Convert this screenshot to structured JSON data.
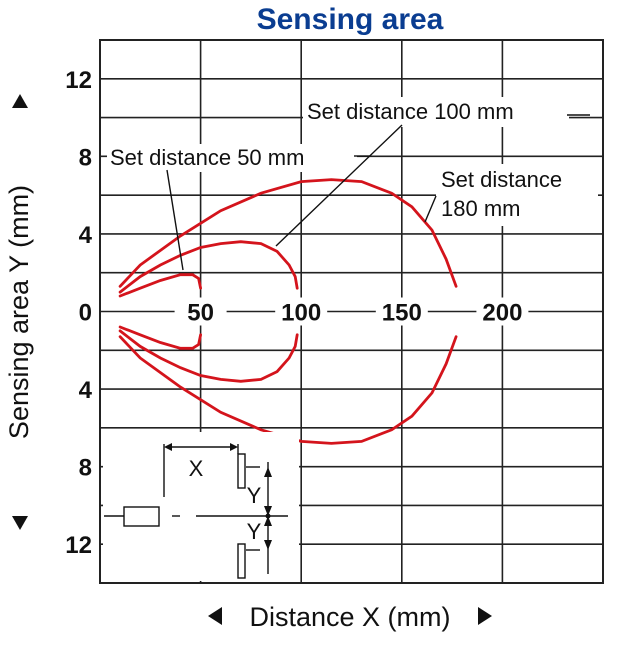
{
  "chart_data": {
    "type": "line",
    "title": "Sensing area",
    "xlabel": "Distance X (mm)",
    "ylabel": "Sensing area Y (mm)",
    "xlim": [
      0,
      250
    ],
    "ylim": [
      -14,
      14
    ],
    "x_ticks": [
      {
        "value": 50,
        "label": "50"
      },
      {
        "value": 100,
        "label": "100"
      },
      {
        "value": 150,
        "label": "150"
      },
      {
        "value": 200,
        "label": "200"
      }
    ],
    "y_ticks": [
      {
        "value": 12,
        "label": "12"
      },
      {
        "value": 8,
        "label": "8"
      },
      {
        "value": 4,
        "label": "4"
      },
      {
        "value": 0,
        "label": "0"
      },
      {
        "value": -4,
        "label": "4"
      },
      {
        "value": -8,
        "label": "8"
      },
      {
        "value": -12,
        "label": "12"
      }
    ],
    "grid": true,
    "series": [
      {
        "name": "Set distance 50 mm",
        "points": [
          [
            10,
            0.8
          ],
          [
            20,
            1.2
          ],
          [
            30,
            1.6
          ],
          [
            40,
            1.9
          ],
          [
            46,
            1.9
          ],
          [
            49,
            1.7
          ],
          [
            50,
            1.2
          ]
        ]
      },
      {
        "name": "Set distance 100 mm",
        "points": [
          [
            10,
            1.0
          ],
          [
            20,
            1.8
          ],
          [
            30,
            2.4
          ],
          [
            40,
            2.9
          ],
          [
            50,
            3.3
          ],
          [
            60,
            3.5
          ],
          [
            70,
            3.6
          ],
          [
            80,
            3.5
          ],
          [
            88,
            3.1
          ],
          [
            94,
            2.4
          ],
          [
            97,
            1.8
          ],
          [
            98,
            1.2
          ]
        ]
      },
      {
        "name": "Set distance 180 mm",
        "points": [
          [
            10,
            1.3
          ],
          [
            20,
            2.4
          ],
          [
            40,
            3.9
          ],
          [
            60,
            5.2
          ],
          [
            80,
            6.1
          ],
          [
            100,
            6.7
          ],
          [
            115,
            6.8
          ],
          [
            130,
            6.7
          ],
          [
            145,
            6.1
          ],
          [
            155,
            5.4
          ],
          [
            165,
            4.2
          ],
          [
            172,
            2.7
          ],
          [
            177,
            1.3
          ]
        ]
      }
    ],
    "annotations": [
      {
        "text": "Set distance 50 mm"
      },
      {
        "text": "Set distance 100 mm"
      },
      {
        "text": "Set distance",
        "text2": "180 mm"
      }
    ]
  },
  "diagram": {
    "x_label": "X",
    "y_label_upper": "Y",
    "y_label_lower": "Y"
  },
  "colors": {
    "title": "#0a3d91",
    "curve": "#d4141c",
    "grid": "#222222"
  }
}
